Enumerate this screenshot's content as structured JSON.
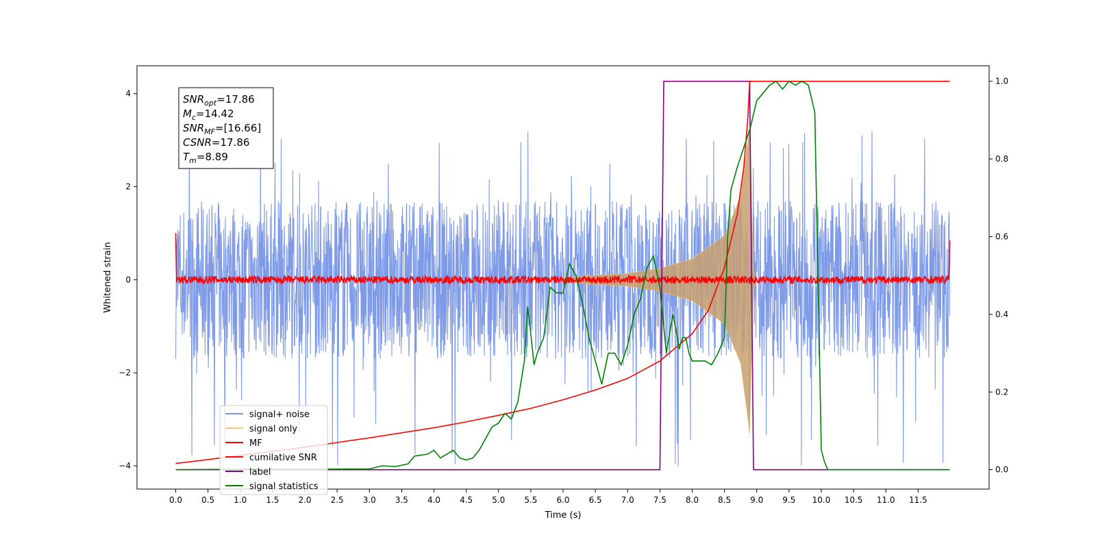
{
  "chart_data": {
    "type": "line",
    "title": "",
    "xlabel": "Time (s)",
    "ylabel": "Whitened strain",
    "xlim": [
      -0.6,
      12.6
    ],
    "ylim": [
      -4.5,
      4.6
    ],
    "y2lim": [
      -0.05,
      1.04
    ],
    "grid": false,
    "legend_location": "lower-left",
    "x_ticks": [
      0.0,
      0.5,
      1.0,
      1.5,
      2.0,
      2.5,
      3.0,
      3.5,
      4.0,
      4.5,
      5.0,
      5.5,
      6.0,
      6.5,
      7.0,
      7.5,
      8.0,
      8.5,
      9.0,
      9.5,
      10.0,
      10.5,
      11.0,
      11.5
    ],
    "x_tick_labels": [
      "0.0",
      "0.5",
      "1.0",
      "1.5",
      "2.0",
      "2.5",
      "3.0",
      "3.5",
      "4.0",
      "4.5",
      "5.0",
      "5.5",
      "6.0",
      "6.5",
      "7.0",
      "7.5",
      "8.0",
      "8.5",
      "9.0",
      "9.5",
      "10.0",
      "10.5",
      "11.0",
      "11.5"
    ],
    "y_ticks": [
      -4,
      -2,
      0,
      2,
      4
    ],
    "y_tick_labels": [
      "−4",
      "−2",
      "0",
      "2",
      "4"
    ],
    "y2_ticks": [
      0.0,
      0.2,
      0.4,
      0.6,
      0.8,
      1.0
    ],
    "y2_tick_labels": [
      "0.0",
      "0.2",
      "0.4",
      "0.6",
      "0.8",
      "1.0"
    ],
    "annotation": {
      "lines": [
        {
          "base": "SNR",
          "sub": "opt",
          "rest": "=17.86"
        },
        {
          "base": "M",
          "sub": "c",
          "rest": "=14.42"
        },
        {
          "base": "SNR",
          "sub": "MF",
          "rest": "=[16.66]"
        },
        {
          "base": "CSNR",
          "sub": "",
          "rest": "=17.86"
        },
        {
          "base": "T",
          "sub": "m",
          "rest": "=8.89"
        }
      ]
    },
    "series": [
      {
        "name": "signal+ noise",
        "axis": "left",
        "color": "#7895e6",
        "kind": "noise",
        "x_range": [
          0.0,
          11.99
        ],
        "typical_range": [
          -1.7,
          1.7
        ],
        "peak_range": [
          -4.05,
          3.3
        ]
      },
      {
        "name": "signal only",
        "axis": "left",
        "color": "#f6c97a",
        "kind": "chirp",
        "points": [
          [
            6.0,
            0.05
          ],
          [
            6.5,
            0.1
          ],
          [
            7.0,
            0.14
          ],
          [
            7.5,
            0.25
          ],
          [
            8.0,
            0.45
          ],
          [
            8.5,
            0.95
          ],
          [
            8.75,
            1.8
          ],
          [
            8.89,
            3.3
          ],
          [
            8.95,
            0.2
          ],
          [
            9.0,
            0.0
          ]
        ]
      },
      {
        "name": "MF",
        "axis": "left",
        "color": "#ff0000",
        "kind": "noise",
        "x_range": [
          0.0,
          11.99
        ],
        "typical_range": [
          -0.08,
          0.08
        ],
        "edge_values": [
          1.0,
          0.85
        ]
      },
      {
        "name": "cumilative SNR",
        "axis": "right",
        "color": "#ff0000",
        "points": [
          [
            0.0,
            0.016
          ],
          [
            0.5,
            0.026
          ],
          [
            1.0,
            0.037
          ],
          [
            1.5,
            0.047
          ],
          [
            2.0,
            0.058
          ],
          [
            2.5,
            0.07
          ],
          [
            3.0,
            0.082
          ],
          [
            3.5,
            0.095
          ],
          [
            4.0,
            0.108
          ],
          [
            4.5,
            0.123
          ],
          [
            5.0,
            0.14
          ],
          [
            5.5,
            0.158
          ],
          [
            6.0,
            0.18
          ],
          [
            6.5,
            0.205
          ],
          [
            7.0,
            0.235
          ],
          [
            7.5,
            0.28
          ],
          [
            8.0,
            0.35
          ],
          [
            8.25,
            0.41
          ],
          [
            8.5,
            0.52
          ],
          [
            8.7,
            0.66
          ],
          [
            8.8,
            0.78
          ],
          [
            8.86,
            0.9
          ],
          [
            8.89,
            1.0
          ],
          [
            11.99,
            1.0
          ]
        ]
      },
      {
        "name": "label",
        "axis": "right",
        "color": "#800080",
        "points": [
          [
            0.0,
            0.0
          ],
          [
            7.5,
            0.0
          ],
          [
            7.56,
            1.0
          ],
          [
            8.89,
            1.0
          ],
          [
            8.95,
            0.0
          ],
          [
            11.99,
            0.0
          ]
        ]
      },
      {
        "name": "signal statistics",
        "axis": "right",
        "color": "#008000",
        "points": [
          [
            0.0,
            0.0
          ],
          [
            1.0,
            0.001
          ],
          [
            2.0,
            0.001
          ],
          [
            3.0,
            0.002
          ],
          [
            3.2,
            0.01
          ],
          [
            3.4,
            0.008
          ],
          [
            3.6,
            0.015
          ],
          [
            3.7,
            0.035
          ],
          [
            3.9,
            0.04
          ],
          [
            4.0,
            0.05
          ],
          [
            4.1,
            0.03
          ],
          [
            4.3,
            0.05
          ],
          [
            4.4,
            0.03
          ],
          [
            4.5,
            0.025
          ],
          [
            4.6,
            0.03
          ],
          [
            4.7,
            0.05
          ],
          [
            4.8,
            0.08
          ],
          [
            4.9,
            0.11
          ],
          [
            5.0,
            0.12
          ],
          [
            5.1,
            0.145
          ],
          [
            5.2,
            0.13
          ],
          [
            5.3,
            0.175
          ],
          [
            5.4,
            0.28
          ],
          [
            5.45,
            0.42
          ],
          [
            5.5,
            0.35
          ],
          [
            5.55,
            0.27
          ],
          [
            5.6,
            0.3
          ],
          [
            5.7,
            0.34
          ],
          [
            5.8,
            0.47
          ],
          [
            5.9,
            0.455
          ],
          [
            6.0,
            0.455
          ],
          [
            6.1,
            0.53
          ],
          [
            6.2,
            0.5
          ],
          [
            6.3,
            0.43
          ],
          [
            6.4,
            0.34
          ],
          [
            6.5,
            0.28
          ],
          [
            6.55,
            0.25
          ],
          [
            6.6,
            0.22
          ],
          [
            6.7,
            0.3
          ],
          [
            6.8,
            0.3
          ],
          [
            6.9,
            0.27
          ],
          [
            7.0,
            0.32
          ],
          [
            7.1,
            0.4
          ],
          [
            7.2,
            0.44
          ],
          [
            7.3,
            0.52
          ],
          [
            7.4,
            0.55
          ],
          [
            7.5,
            0.47
          ],
          [
            7.6,
            0.3
          ],
          [
            7.7,
            0.4
          ],
          [
            7.75,
            0.36
          ],
          [
            7.8,
            0.31
          ],
          [
            7.85,
            0.34
          ],
          [
            7.9,
            0.34
          ],
          [
            7.95,
            0.3
          ],
          [
            8.0,
            0.28
          ],
          [
            8.1,
            0.28
          ],
          [
            8.2,
            0.28
          ],
          [
            8.3,
            0.27
          ],
          [
            8.4,
            0.3
          ],
          [
            8.5,
            0.34
          ],
          [
            8.55,
            0.6
          ],
          [
            8.6,
            0.72
          ],
          [
            8.7,
            0.78
          ],
          [
            8.8,
            0.83
          ],
          [
            8.9,
            0.88
          ],
          [
            9.0,
            0.95
          ],
          [
            9.1,
            0.97
          ],
          [
            9.2,
            0.99
          ],
          [
            9.3,
            1.0
          ],
          [
            9.4,
            0.98
          ],
          [
            9.5,
            1.0
          ],
          [
            9.6,
            0.99
          ],
          [
            9.7,
            1.0
          ],
          [
            9.8,
            0.99
          ],
          [
            9.9,
            0.92
          ],
          [
            10.0,
            0.05
          ],
          [
            10.05,
            0.02
          ],
          [
            10.1,
            0.0
          ],
          [
            11.99,
            0.0
          ]
        ]
      }
    ]
  }
}
